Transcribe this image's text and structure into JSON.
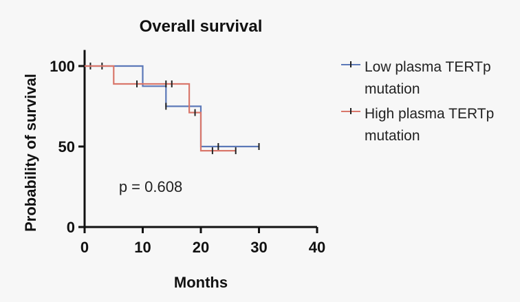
{
  "chart_data": {
    "type": "line",
    "title": "Overall survival",
    "xlabel": "Months",
    "ylabel": "Probability of survival",
    "xlim": [
      0,
      40
    ],
    "ylim": [
      0,
      110
    ],
    "xticks": [
      0,
      10,
      20,
      30,
      40
    ],
    "yticks": [
      0,
      50,
      100
    ],
    "annotation": "p = 0.608",
    "legend_position": "right",
    "grid": false,
    "series": [
      {
        "name": "Low plasma TERTp mutation",
        "color": "#5b78b8",
        "step": true,
        "x": [
          0,
          10,
          10,
          14,
          14,
          20,
          20,
          30
        ],
        "y": [
          100,
          100,
          87.5,
          87.5,
          75,
          75,
          50,
          50
        ],
        "censored_x": [
          1,
          3,
          14,
          23,
          30
        ],
        "censored_y": [
          100,
          100,
          75,
          50,
          50
        ]
      },
      {
        "name": "High plasma TERTp mutation",
        "color": "#d9776b",
        "step": true,
        "x": [
          0,
          5,
          5,
          18,
          18,
          20,
          20,
          26
        ],
        "y": [
          100,
          100,
          88.9,
          88.9,
          71.1,
          71.1,
          47.4,
          47.4
        ],
        "censored_x": [
          9,
          14,
          15,
          19,
          22,
          26
        ],
        "censored_y": [
          88.9,
          88.9,
          88.9,
          71.1,
          47.4,
          47.4
        ]
      }
    ]
  }
}
